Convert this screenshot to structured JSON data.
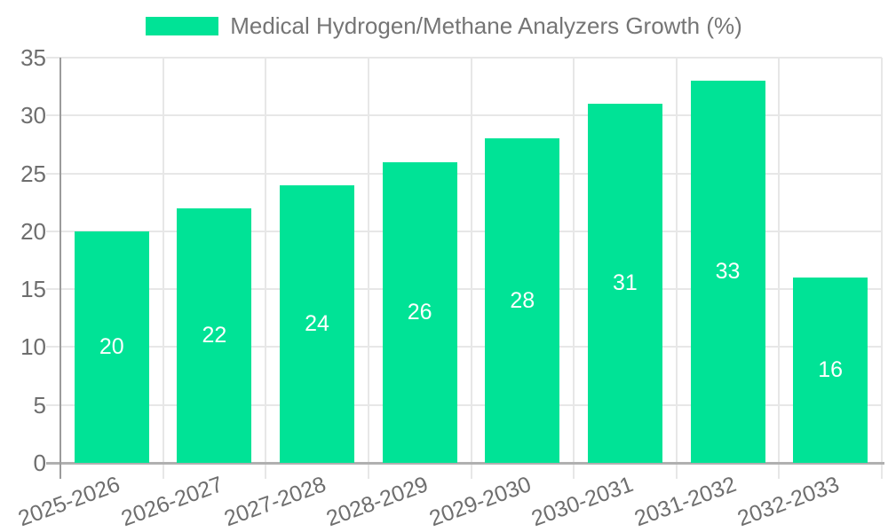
{
  "legend": {
    "label": "Medical Hydrogen/Methane Analyzers Growth (%)"
  },
  "chart_data": {
    "type": "bar",
    "title": "Medical Hydrogen/Methane Analyzers Growth (%)",
    "categories": [
      "2025-2026",
      "2026-2027",
      "2027-2028",
      "2028-2029",
      "2029-2030",
      "2030-2031",
      "2031-2032",
      "2032-2033"
    ],
    "series": [
      {
        "name": "Medical Hydrogen/Methane Analyzers Growth (%)",
        "values": [
          20,
          22,
          24,
          26,
          28,
          31,
          33,
          16
        ]
      }
    ],
    "value_labels": [
      "20",
      "22",
      "24",
      "26",
      "28",
      "31",
      "33",
      "16"
    ],
    "xlabel": "",
    "ylabel": "",
    "ylim": [
      0,
      35
    ],
    "yticks": [
      0,
      5,
      10,
      15,
      20,
      25,
      30,
      35
    ],
    "grid": true,
    "legend_position": "top",
    "x_label_rotation_deg": -20,
    "colors": {
      "bar": "#00E396",
      "grid": "#e7e7e7",
      "y_axis_line": "#9b9b9b",
      "x_axis_line": "#b0b0b0",
      "axis_text": "#6e6e6e",
      "legend_text": "#757575",
      "value_text": "#ffffff",
      "background": "#ffffff"
    }
  }
}
